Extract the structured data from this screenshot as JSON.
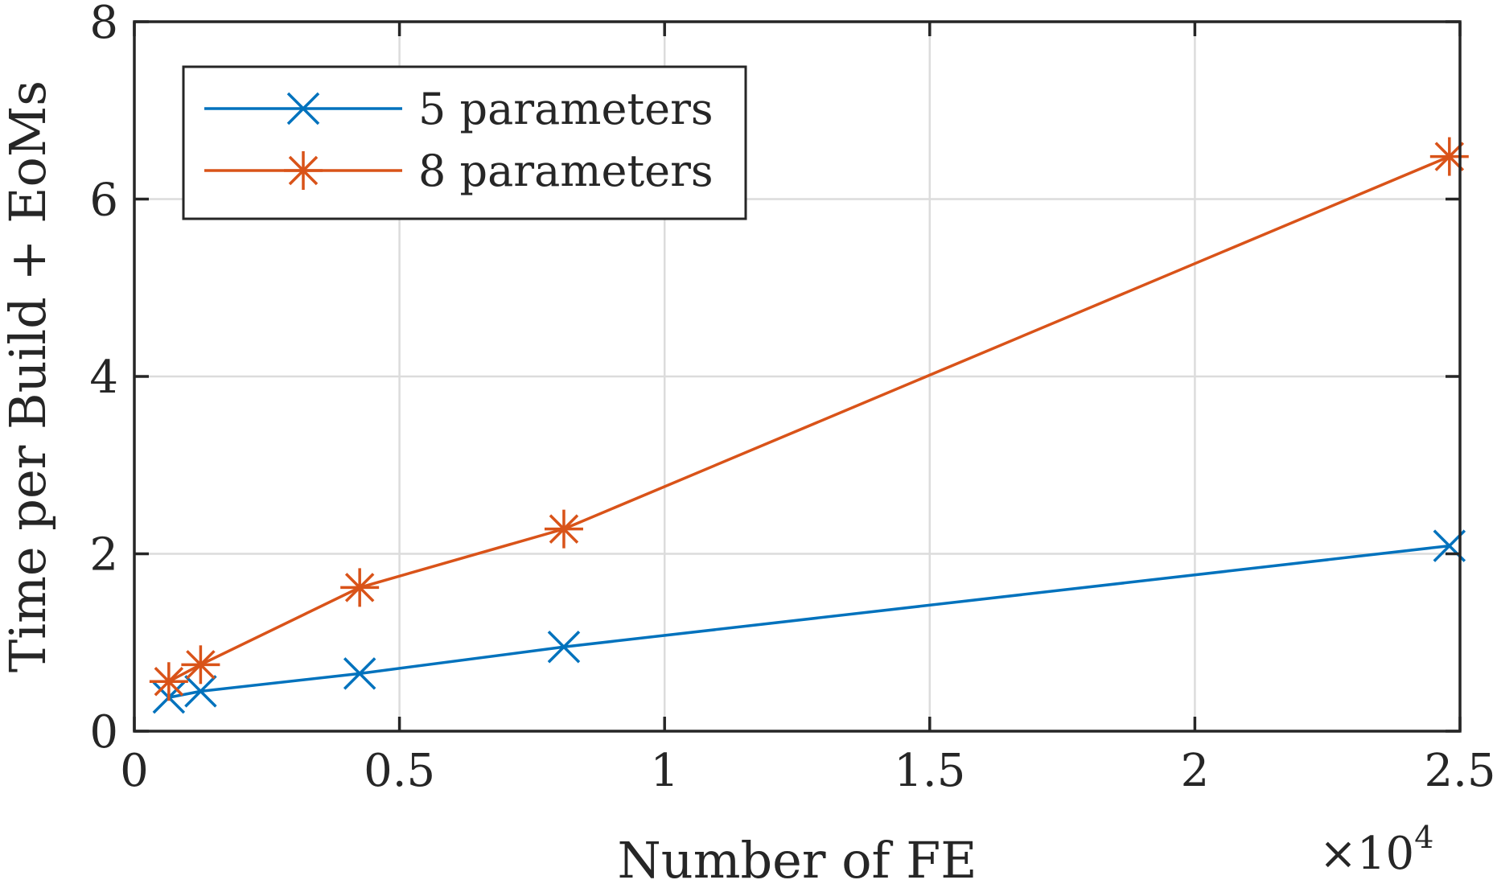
{
  "chart_data": {
    "type": "line",
    "xlabel": "Number of FE",
    "ylabel": "Time per Build + EoMs",
    "x_multiplier_label": "×10",
    "x_multiplier_exponent": "4",
    "xlim": [
      0,
      2.5
    ],
    "ylim": [
      0,
      8
    ],
    "xticks": [
      0,
      0.5,
      1,
      1.5,
      2,
      2.5
    ],
    "xtick_labels": [
      "0",
      "0.5",
      "1",
      "1.5",
      "2",
      "2.5"
    ],
    "yticks": [
      0,
      2,
      4,
      6,
      8
    ],
    "ytick_labels": [
      "0",
      "2",
      "4",
      "6",
      "8"
    ],
    "grid": true,
    "legend_position": "top-left",
    "series": [
      {
        "name": "5 parameters",
        "color": "#0072BD",
        "marker": "x",
        "x": [
          0.065,
          0.125,
          0.425,
          0.81,
          2.48
        ],
        "y": [
          0.38,
          0.45,
          0.65,
          0.95,
          2.09
        ]
      },
      {
        "name": "8 parameters",
        "color": "#D95319",
        "marker": "asterisk",
        "x": [
          0.065,
          0.125,
          0.425,
          0.81,
          2.48
        ],
        "y": [
          0.56,
          0.75,
          1.62,
          2.28,
          6.48
        ]
      }
    ]
  }
}
